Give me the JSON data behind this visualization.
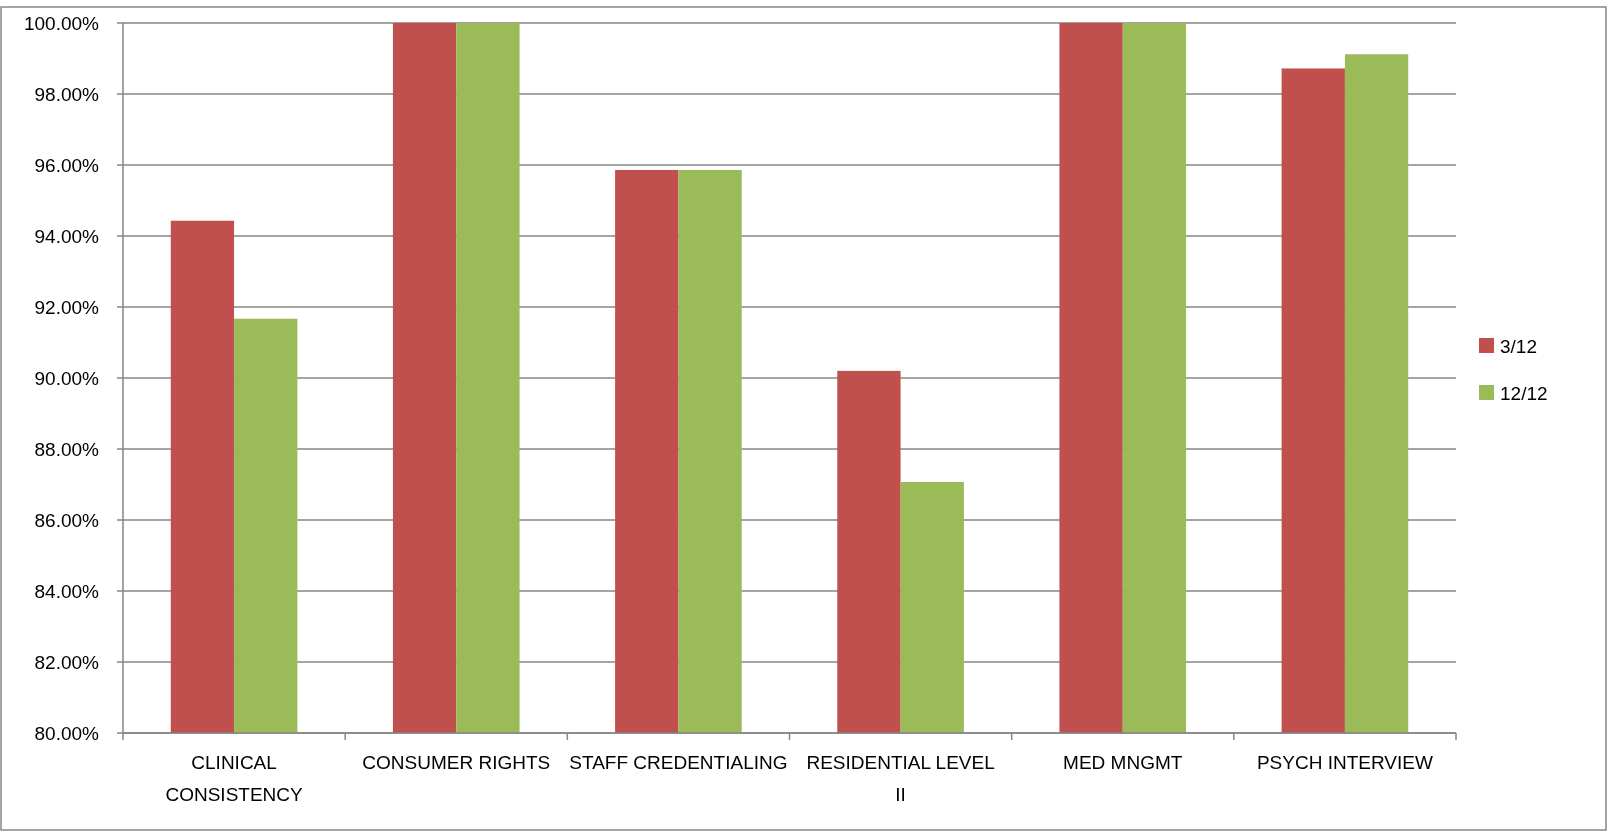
{
  "chart_data": {
    "type": "bar",
    "categories": [
      "CLINICAL CONSISTENCY",
      "CONSUMER RIGHTS",
      "STAFF CREDENTIALING",
      "RESIDENTIAL LEVEL II",
      "MED MNGMT",
      "PSYCH INTERVIEW"
    ],
    "series": [
      {
        "name": "3/12",
        "color": "#c0504d",
        "values": [
          94.43,
          100,
          95.86,
          90.2,
          100,
          98.72
        ]
      },
      {
        "name": "12/12",
        "color": "#9bbb59",
        "values": [
          91.67,
          100,
          95.86,
          87.07,
          100,
          99.12
        ]
      }
    ],
    "ylim": [
      80,
      100
    ],
    "yticks": [
      {
        "value": 80,
        "label": "80.00%"
      },
      {
        "value": 82,
        "label": "82.00%"
      },
      {
        "value": 84,
        "label": "84.00%"
      },
      {
        "value": 86,
        "label": "86.00%"
      },
      {
        "value": 88,
        "label": "88.00%"
      },
      {
        "value": 90,
        "label": "90.00%"
      },
      {
        "value": 92,
        "label": "92.00%"
      },
      {
        "value": 94,
        "label": "94.00%"
      },
      {
        "value": 96,
        "label": "96.00%"
      },
      {
        "value": 98,
        "label": "98.00%"
      },
      {
        "value": 100,
        "label": "100.00%"
      }
    ],
    "grid": "y",
    "legend": "right"
  }
}
